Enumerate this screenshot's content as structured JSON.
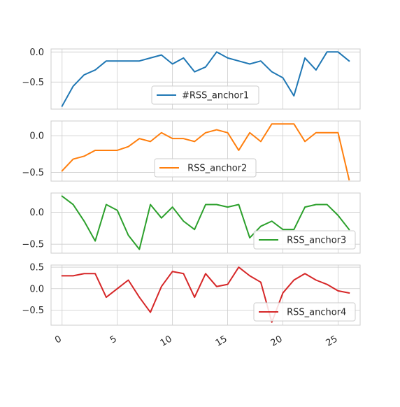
{
  "chart_data": [
    {
      "type": "line",
      "x": [
        0,
        1,
        2,
        3,
        4,
        5,
        6,
        7,
        8,
        9,
        10,
        11,
        12,
        13,
        14,
        15,
        16,
        17,
        18,
        19,
        20,
        21,
        22,
        23,
        24,
        25,
        26
      ],
      "series": [
        {
          "name": "#RSS_anchor1",
          "color": "#1f77b4",
          "values": [
            -0.9,
            -0.57,
            -0.38,
            -0.3,
            -0.15,
            -0.15,
            -0.15,
            -0.15,
            -0.1,
            -0.05,
            -0.2,
            -0.1,
            -0.33,
            -0.25,
            0.0,
            -0.1,
            -0.15,
            -0.2,
            -0.15,
            -0.33,
            -0.43,
            -0.73,
            -0.1,
            -0.3,
            0.0,
            0.0,
            -0.15
          ]
        }
      ],
      "ylim": [
        -0.95,
        0.05
      ],
      "yticks": [
        0.0,
        -0.5
      ],
      "ytick_labels": [
        "0.0",
        "−0.5"
      ],
      "legend_position": "lower-center",
      "grid": true
    },
    {
      "type": "line",
      "x": [
        0,
        1,
        2,
        3,
        4,
        5,
        6,
        7,
        8,
        9,
        10,
        11,
        12,
        13,
        14,
        15,
        16,
        17,
        18,
        19,
        20,
        21,
        22,
        23,
        24,
        25,
        26
      ],
      "series": [
        {
          "name": " RSS_anchor2",
          "color": "#ff7f0e",
          "values": [
            -0.48,
            -0.32,
            -0.28,
            -0.2,
            -0.2,
            -0.2,
            -0.15,
            -0.04,
            -0.08,
            0.04,
            -0.04,
            -0.04,
            -0.08,
            0.04,
            0.08,
            0.04,
            -0.2,
            0.04,
            -0.08,
            0.16,
            0.16,
            0.16,
            -0.08,
            0.04,
            0.04,
            0.04,
            -0.6
          ]
        }
      ],
      "ylim": [
        -0.62,
        0.2
      ],
      "yticks": [
        0.0,
        -0.5
      ],
      "ytick_labels": [
        "0.0",
        "−0.5"
      ],
      "legend_position": "lower-center",
      "grid": true
    },
    {
      "type": "line",
      "x": [
        0,
        1,
        2,
        3,
        4,
        5,
        6,
        7,
        8,
        9,
        10,
        11,
        12,
        13,
        14,
        15,
        16,
        17,
        18,
        19,
        20,
        21,
        22,
        23,
        24,
        25,
        26
      ],
      "series": [
        {
          "name": " RSS_anchor3",
          "color": "#2ca02c",
          "values": [
            0.25,
            0.12,
            -0.14,
            -0.45,
            0.12,
            0.03,
            -0.36,
            -0.58,
            0.12,
            -0.09,
            0.08,
            -0.14,
            -0.27,
            0.12,
            0.12,
            0.08,
            0.12,
            -0.4,
            -0.22,
            -0.14,
            -0.27,
            -0.27,
            0.08,
            0.12,
            0.12,
            -0.05,
            -0.27
          ]
        }
      ],
      "ylim": [
        -0.64,
        0.3
      ],
      "yticks": [
        0.0,
        -0.5
      ],
      "ytick_labels": [
        "0.0",
        "−0.5"
      ],
      "legend_position": "lower-right",
      "grid": true
    },
    {
      "type": "line",
      "x": [
        0,
        1,
        2,
        3,
        4,
        5,
        6,
        7,
        8,
        9,
        10,
        11,
        12,
        13,
        14,
        15,
        16,
        17,
        18,
        19,
        20,
        21,
        22,
        23,
        24,
        25,
        26
      ],
      "series": [
        {
          "name": " RSS_anchor4",
          "color": "#d62728",
          "values": [
            0.3,
            0.3,
            0.35,
            0.35,
            -0.2,
            0.0,
            0.2,
            -0.2,
            -0.55,
            0.05,
            0.4,
            0.35,
            -0.2,
            0.35,
            0.05,
            0.1,
            0.5,
            0.3,
            0.15,
            -0.78,
            -0.1,
            0.2,
            0.35,
            0.2,
            0.1,
            -0.05,
            -0.1
          ]
        }
      ],
      "ylim": [
        -0.85,
        0.55
      ],
      "yticks": [
        0.5,
        0.0,
        -0.5
      ],
      "ytick_labels": [
        "0.5",
        "0.0",
        "−0.5"
      ],
      "legend_position": "lower-right",
      "grid": true
    }
  ],
  "xaxis": {
    "xlim": [
      -1,
      27
    ],
    "ticks": [
      0,
      5,
      10,
      15,
      20,
      25
    ],
    "tick_labels": [
      "0",
      "5",
      "10",
      "15",
      "20",
      "25"
    ],
    "tick_rotation_deg": 30
  }
}
